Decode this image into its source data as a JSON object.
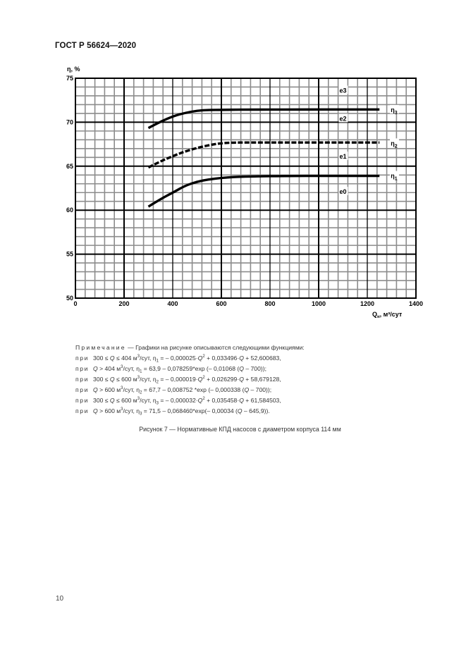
{
  "document": {
    "header": "ГОСТ Р 56624—2020",
    "page_number": "10"
  },
  "chart_data": {
    "type": "line",
    "title": "",
    "xlabel": "Qн, м³/сут",
    "ylabel": "η, %",
    "xlim": [
      0,
      1400
    ],
    "ylim": [
      50,
      75
    ],
    "grid": true,
    "x_ticks": [
      "0",
      "200",
      "400",
      "600",
      "800",
      "1000",
      "1200",
      "1400"
    ],
    "y_ticks": [
      "75",
      "70",
      "65",
      "60",
      "55",
      "50"
    ],
    "minor_grid": {
      "x_step": 40,
      "y_step": 1
    },
    "x": [
      300,
      350,
      404,
      450,
      500,
      550,
      600,
      650,
      700,
      800,
      900,
      1000,
      1100,
      1250
    ],
    "series": [
      {
        "name": "η1",
        "style": "solid",
        "values": [
          60.4,
          61.26,
          62.05,
          62.77,
          63.24,
          63.51,
          63.67,
          63.77,
          63.82,
          63.87,
          63.89,
          63.9,
          63.9,
          63.9
        ]
      },
      {
        "name": "η2",
        "style": "dashed",
        "values": [
          64.86,
          65.56,
          66.19,
          66.67,
          67.08,
          67.4,
          67.62,
          67.69,
          67.69,
          67.69,
          67.69,
          67.69,
          67.69,
          67.69
        ]
      },
      {
        "name": "η3",
        "style": "solid",
        "values": [
          69.34,
          70.07,
          70.7,
          71.06,
          71.31,
          71.4,
          71.4,
          71.43,
          71.43,
          71.44,
          71.44,
          71.45,
          71.45,
          71.45
        ]
      }
    ],
    "annotations": [
      {
        "text": "е3",
        "x": 1100,
        "y": 73.6
      },
      {
        "text": "е2",
        "x": 1100,
        "y": 70.4
      },
      {
        "text": "е1",
        "x": 1100,
        "y": 66.1
      },
      {
        "text": "е0",
        "x": 1100,
        "y": 62.1
      },
      {
        "text": "η3",
        "x": 1310,
        "y": 71.4
      },
      {
        "text": "η2",
        "x": 1310,
        "y": 67.6
      },
      {
        "text": "η1",
        "x": 1310,
        "y": 63.9
      }
    ]
  },
  "note": {
    "label": "Примечание",
    "intro": "— Графики на рисунке описываются следующими функциями:",
    "lines": [
      {
        "pri": "при",
        "cond": "300 ≤ Q ≤ 404 м³/сут,",
        "eq": "η1 = – 0,000025·Q² + 0,033496·Q + 52,600683,"
      },
      {
        "pri": "при",
        "cond": "Q > 404 м³/сут,",
        "eq": "η1 = 63,9 – 0,078259*exp (– 0,01068 (Q – 700));"
      },
      {
        "pri": "при",
        "cond": "300 ≤ Q ≤ 600 м³/сут,",
        "eq": "η2 = – 0,000019·Q² + 0,026299·Q + 58,679128,"
      },
      {
        "pri": "при",
        "cond": "Q > 600 м³/сут,",
        "eq": "η2 = 67,7 – 0,008752 *exp (– 0,000338 (Q – 700));"
      },
      {
        "pri": "при",
        "cond": "300 ≤ Q ≤ 600 м³/сут,",
        "eq": "η3 = – 0,000032·Q² + 0,035458·Q + 61,584503,"
      },
      {
        "pri": "при",
        "cond": "Q > 600 м³/сут,",
        "eq": "η3 = 71,5 – 0,068460*exp(– 0,00034 (Q – 645,9))."
      }
    ]
  },
  "caption": "Рисунок 7 — Нормативные КПД насосов с диаметром корпуса 114 мм"
}
